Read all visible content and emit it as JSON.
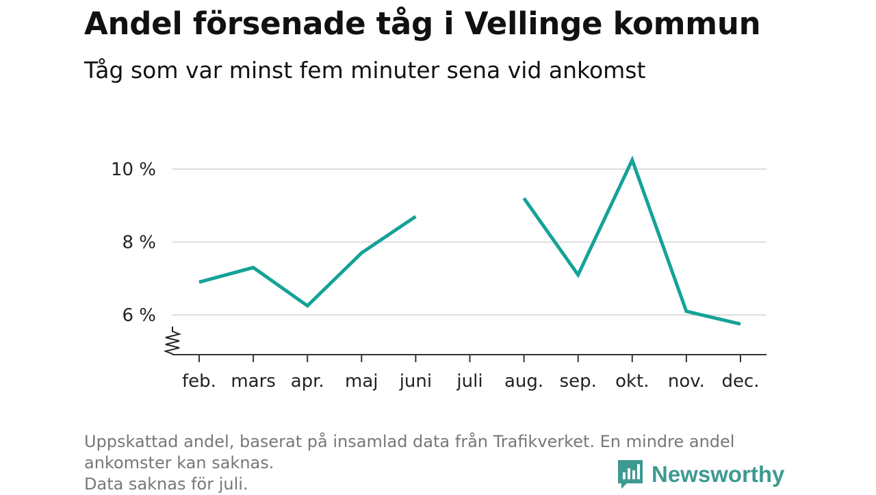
{
  "title": "Andel försenade tåg i Vellinge kommun",
  "subtitle": "Tåg som var minst fem minuter sena vid ankomst",
  "footnote": {
    "line1": "Uppskattad andel, baserat på insamlad data från Trafikverket. En mindre andel",
    "line2": "ankomster kan saknas.",
    "line3": "Data saknas för juli."
  },
  "brand": {
    "name": "Newsworthy",
    "color": "#3e9a91",
    "icon": "bar-chart-speech-bubble-icon"
  },
  "chart_data": {
    "type": "line",
    "categories": [
      "feb.",
      "mars",
      "apr.",
      "maj",
      "juni",
      "juli",
      "aug.",
      "sep.",
      "okt.",
      "nov.",
      "dec."
    ],
    "series": [
      {
        "values": [
          6.9,
          7.3,
          6.25,
          7.7,
          8.7,
          null,
          9.2,
          7.1,
          10.25,
          6.1,
          5.75
        ],
        "color": "#15a298"
      }
    ],
    "yticks": [
      6,
      8,
      10
    ],
    "ytick_labels": [
      "6 %",
      "8 %",
      "10 %"
    ],
    "ylim": [
      5,
      10.5
    ],
    "y_axis_break": true,
    "grid": true,
    "xlabel": "",
    "ylabel": ""
  }
}
